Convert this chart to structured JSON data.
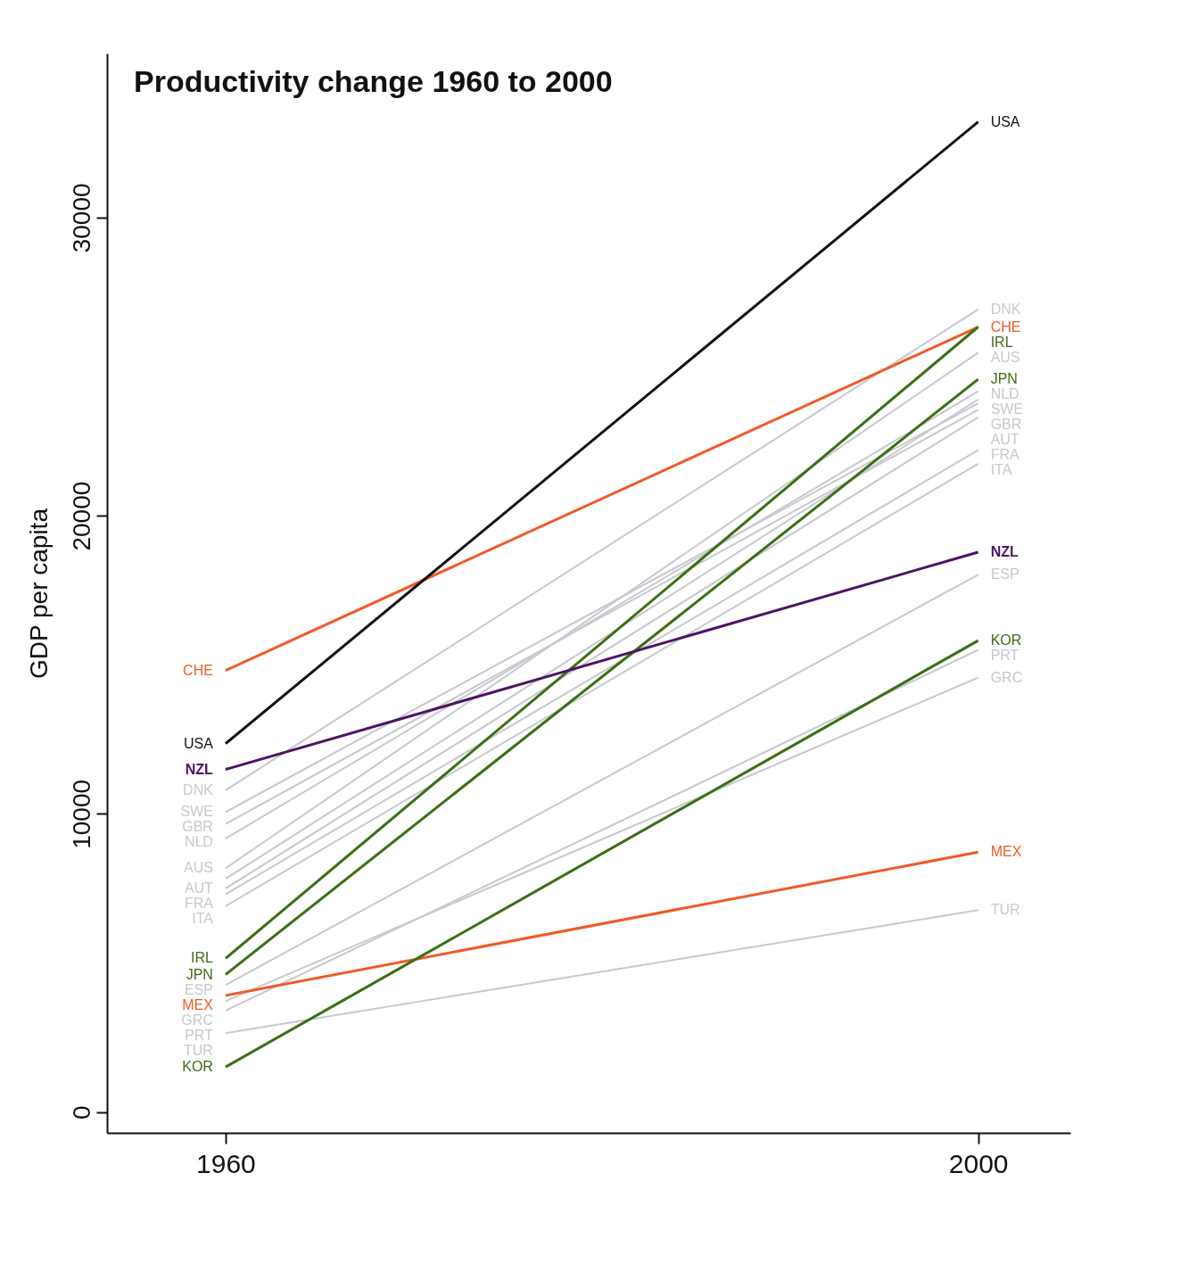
{
  "chart_data": {
    "type": "line",
    "title": "Productivity change 1960 to 2000",
    "ylabel": "GDP per capita",
    "x": [
      1960,
      2000
    ],
    "xlim": [
      1953.7,
      2004.9
    ],
    "xticks": [
      1960,
      2000
    ],
    "ylim": [
      -700,
      35500
    ],
    "yticks": [
      0,
      10000,
      20000,
      30000
    ],
    "grid": false,
    "series": [
      {
        "name": "DNK",
        "color": "#c8c8d0",
        "values": [
          10790,
          26920
        ]
      },
      {
        "name": "SWE",
        "color": "#c8c8d0",
        "values": [
          10060,
          23770
        ]
      },
      {
        "name": "GBR",
        "color": "#c8c8d0",
        "values": [
          9660,
          23550
        ]
      },
      {
        "name": "NLD",
        "color": "#c8c8d0",
        "values": [
          9170,
          24170
        ]
      },
      {
        "name": "AUS",
        "color": "#c8c8d0",
        "values": [
          8175,
          25465
        ]
      },
      {
        "name": null,
        "color": "#c8c8d0",
        "values": [
          7820,
          23900
        ]
      },
      {
        "name": "AUT",
        "color": "#c8c8d0",
        "values": [
          7500,
          23300
        ]
      },
      {
        "name": "FRA",
        "color": "#c8c8d0",
        "values": [
          7300,
          22200
        ]
      },
      {
        "name": "ITA",
        "color": "#c8c8d0",
        "values": [
          6905,
          21740
        ]
      },
      {
        "name": "ESP",
        "color": "#c8c8d0",
        "values": [
          4260,
          18020
        ]
      },
      {
        "name": "GRC",
        "color": "#c8c8d0",
        "values": [
          3720,
          14570
        ]
      },
      {
        "name": "PRT",
        "color": "#c8c8d0",
        "values": [
          3400,
          15500
        ]
      },
      {
        "name": "TUR",
        "color": "#c8c8d0",
        "values": [
          2645,
          6770
        ]
      },
      {
        "name": "MEX",
        "color": "#f05a28",
        "values": [
          3910,
          8715
        ]
      },
      {
        "name": "CHE",
        "color": "#f05a28",
        "values": [
          14810,
          26330
        ]
      },
      {
        "name": "IRL",
        "color": "#3c6e14",
        "values": [
          5150,
          26330
        ]
      },
      {
        "name": "JPN",
        "color": "#3c6e14",
        "values": [
          4610,
          24575
        ]
      },
      {
        "name": "KOR",
        "color": "#3c6e14",
        "values": [
          1510,
          15810
        ]
      },
      {
        "name": "NZL",
        "color": "#4b1464",
        "values": [
          11490,
          18775
        ]
      },
      {
        "name": "USA",
        "color": "#111111",
        "values": [
          12355,
          33210
        ]
      }
    ]
  }
}
